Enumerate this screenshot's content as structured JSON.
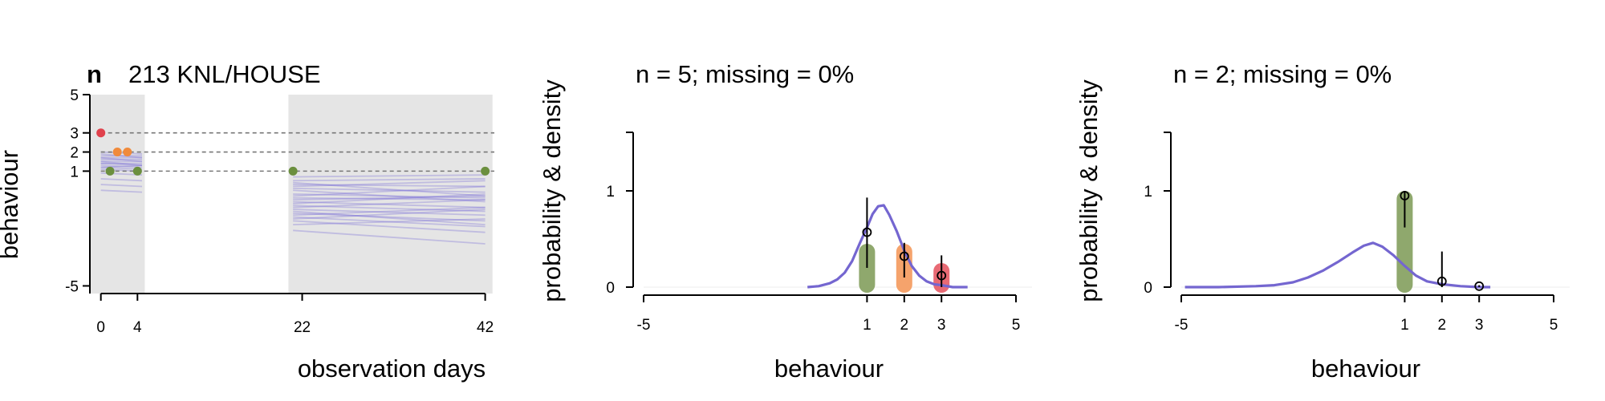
{
  "colors": {
    "shade": "#e5e5e5",
    "trajectory": "#7b6fd6",
    "density": "#7466d0",
    "level_1": "#6b8f3e",
    "level_2": "#f08a3c",
    "level_3": "#e0414c",
    "bar_1": "#8fa86d",
    "bar_2": "#f5a36c",
    "bar_3": "#e86a74",
    "reference_line": "#777777"
  },
  "panel_a": {
    "letter": "n",
    "title": "213 KNL/HOUSE"
  },
  "panel_b": {
    "title": "n = 5; missing = 0%"
  },
  "panel_c": {
    "title": "n = 2; missing = 0%"
  },
  "chart_data": [
    {
      "type": "line",
      "panel": "a",
      "xlabel": "observation days",
      "ylabel": "behaviour",
      "x_ticks": [
        0,
        4,
        22,
        42
      ],
      "y_ticks": [
        -5,
        1,
        2,
        3,
        5
      ],
      "xlim": [
        -1.2,
        43
      ],
      "ylim": [
        -5.4,
        5
      ],
      "reference_lines_y": [
        1,
        2,
        3
      ],
      "shaded_x_ranges": [
        [
          -1.2,
          4.8
        ],
        [
          20.5,
          42.8
        ]
      ],
      "observations": [
        {
          "x": 0,
          "y": 3,
          "level": 3
        },
        {
          "x": 1.8,
          "y": 2,
          "level": 2
        },
        {
          "x": 2.9,
          "y": 2,
          "level": 2
        },
        {
          "x": 1,
          "y": 1,
          "level": 1
        },
        {
          "x": 4,
          "y": 1,
          "level": 1
        },
        {
          "x": 21,
          "y": 1,
          "level": 1
        },
        {
          "x": 42,
          "y": 1,
          "level": 1
        }
      ],
      "early_trajectories": [
        {
          "y0": 2.0,
          "y1": 1.9
        },
        {
          "y0": 1.9,
          "y1": 1.7
        },
        {
          "y0": 1.8,
          "y1": 1.8
        },
        {
          "y0": 1.7,
          "y1": 1.5
        },
        {
          "y0": 1.6,
          "y1": 1.6
        },
        {
          "y0": 1.5,
          "y1": 1.5
        },
        {
          "y0": 1.5,
          "y1": 1.3
        },
        {
          "y0": 1.4,
          "y1": 1.4
        },
        {
          "y0": 1.3,
          "y1": 1.2
        },
        {
          "y0": 1.2,
          "y1": 1.1
        },
        {
          "y0": 1.1,
          "y1": 1.0
        },
        {
          "y0": 0.9,
          "y1": 0.8
        },
        {
          "y0": 0.6,
          "y1": 0.5
        },
        {
          "y0": 0.3,
          "y1": 0.2
        },
        {
          "y0": 0.0,
          "y1": -0.1
        },
        {
          "y0": 1.7,
          "y1": 1.7
        },
        {
          "y0": 1.4,
          "y1": 1.3
        },
        {
          "y0": 1.2,
          "y1": 1.3
        }
      ],
      "late_trajectories": [
        {
          "y0": 0.7,
          "y1": 0.8
        },
        {
          "y0": 0.5,
          "y1": 0.6
        },
        {
          "y0": 0.3,
          "y1": 0.2
        },
        {
          "y0": 0.1,
          "y1": -0.1
        },
        {
          "y0": -0.2,
          "y1": -0.4
        },
        {
          "y0": -0.4,
          "y1": -0.5
        },
        {
          "y0": -0.6,
          "y1": -0.9
        },
        {
          "y0": -0.8,
          "y1": -1.1
        },
        {
          "y0": -1.0,
          "y1": -1.3
        },
        {
          "y0": -1.2,
          "y1": -1.6
        },
        {
          "y0": -1.4,
          "y1": -1.9
        },
        {
          "y0": -1.6,
          "y1": -2.2
        },
        {
          "y0": -2.1,
          "y1": -2.8
        },
        {
          "y0": -1.3,
          "y1": -0.9
        },
        {
          "y0": -0.9,
          "y1": -0.5
        },
        {
          "y0": -0.5,
          "y1": -0.3
        },
        {
          "y0": -0.3,
          "y1": 0.2
        },
        {
          "y0": 0.2,
          "y1": 0.5
        },
        {
          "y0": -1.8,
          "y1": -1.5
        },
        {
          "y0": -1.5,
          "y1": -1.0
        },
        {
          "y0": 0.0,
          "y1": -0.6
        },
        {
          "y0": -0.7,
          "y1": -0.2
        },
        {
          "y0": -1.1,
          "y1": -1.8
        },
        {
          "y0": 0.4,
          "y1": -0.3
        }
      ]
    },
    {
      "type": "bar",
      "panel": "b",
      "xlabel": "behaviour",
      "ylabel": "probability & density",
      "x_ticks": [
        -5,
        1,
        2,
        3,
        5
      ],
      "y_ticks": [
        0,
        1
      ],
      "xlim": [
        -5,
        5
      ],
      "ylim": [
        0,
        1.7
      ],
      "bars": [
        {
          "x": 1,
          "value": 0.45,
          "level": 1
        },
        {
          "x": 2,
          "value": 0.45,
          "level": 2
        },
        {
          "x": 3,
          "value": 0.25,
          "level": 3
        }
      ],
      "points": [
        {
          "x": 1,
          "y": 0.57,
          "lower": 0.2,
          "upper": 0.93
        },
        {
          "x": 2,
          "y": 0.32,
          "lower": 0.1,
          "upper": 0.46
        },
        {
          "x": 3,
          "y": 0.12,
          "lower": 0.0,
          "upper": 0.33
        }
      ],
      "density": [
        [
          -0.6,
          0.0
        ],
        [
          -0.3,
          0.01
        ],
        [
          0.0,
          0.04
        ],
        [
          0.2,
          0.08
        ],
        [
          0.4,
          0.15
        ],
        [
          0.6,
          0.27
        ],
        [
          0.8,
          0.45
        ],
        [
          1.0,
          0.62
        ],
        [
          1.15,
          0.76
        ],
        [
          1.3,
          0.84
        ],
        [
          1.45,
          0.85
        ],
        [
          1.6,
          0.75
        ],
        [
          1.8,
          0.58
        ],
        [
          2.0,
          0.38
        ],
        [
          2.2,
          0.22
        ],
        [
          2.4,
          0.12
        ],
        [
          2.6,
          0.06
        ],
        [
          2.8,
          0.03
        ],
        [
          3.0,
          0.02
        ],
        [
          3.3,
          0.0
        ],
        [
          3.7,
          0.0
        ]
      ]
    },
    {
      "type": "bar",
      "panel": "c",
      "xlabel": "behaviour",
      "ylabel": "probability & density",
      "x_ticks": [
        -5,
        1,
        2,
        3,
        5
      ],
      "y_ticks": [
        0,
        1
      ],
      "xlim": [
        -5,
        5
      ],
      "ylim": [
        0,
        1.7
      ],
      "bars": [
        {
          "x": 1,
          "value": 1.0,
          "level": 1
        }
      ],
      "points": [
        {
          "x": 1,
          "y": 0.95,
          "lower": 0.62,
          "upper": 1.0
        },
        {
          "x": 2,
          "y": 0.06,
          "lower": 0.0,
          "upper": 0.37
        },
        {
          "x": 3,
          "y": 0.01,
          "lower": 0.0,
          "upper": 0.02
        }
      ],
      "density": [
        [
          -4.9,
          0.0
        ],
        [
          -4.0,
          0.0
        ],
        [
          -3.0,
          0.01
        ],
        [
          -2.5,
          0.02
        ],
        [
          -2.0,
          0.05
        ],
        [
          -1.6,
          0.1
        ],
        [
          -1.2,
          0.17
        ],
        [
          -0.8,
          0.26
        ],
        [
          -0.4,
          0.36
        ],
        [
          -0.1,
          0.43
        ],
        [
          0.15,
          0.46
        ],
        [
          0.4,
          0.42
        ],
        [
          0.7,
          0.33
        ],
        [
          1.0,
          0.22
        ],
        [
          1.3,
          0.12
        ],
        [
          1.6,
          0.06
        ],
        [
          2.0,
          0.03
        ],
        [
          2.5,
          0.01
        ],
        [
          3.0,
          0.0
        ],
        [
          3.3,
          0.0
        ]
      ]
    }
  ]
}
